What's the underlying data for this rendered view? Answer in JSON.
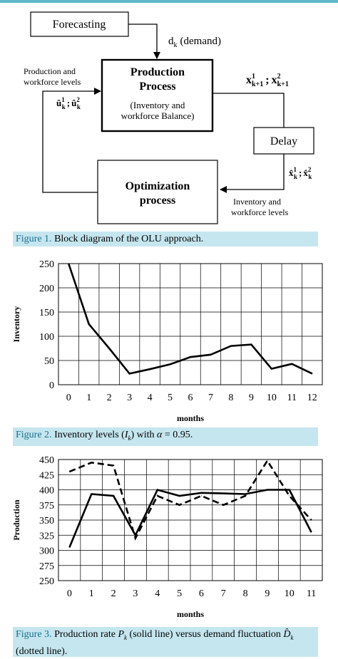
{
  "figure1": {
    "forecasting": "Forecasting",
    "demand": "d",
    "demand_sub": "k",
    "demand_label": "(demand)",
    "production_title_1": "Production",
    "production_title_2": "Process",
    "production_sub_1": "(Inventory and",
    "production_sub_2": "workforce Balance)",
    "delay": "Delay",
    "optimization_1": "Optimization",
    "optimization_2": "process",
    "prod_workforce_1": "Production and",
    "prod_workforce_2": "workforce levels",
    "u_label": "û",
    "x_out_label": "x",
    "x_out_sub": "k+1",
    "x_hat_label": "x̂",
    "x_hat_sub": "k",
    "inv_workforce_1": "Inventory and",
    "inv_workforce_2": "workforce levels",
    "sep": ";",
    "sup1": "1",
    "sup2": "2"
  },
  "captions": {
    "fig1_label": "Figure 1.",
    "fig1_text": " Block diagram of the OLU approach.",
    "fig2_label": "Figure 2.",
    "fig2_text_a": " Inventory levels (",
    "fig2_var": "I",
    "fig2_var_sub": "k",
    "fig2_text_b": ") with ",
    "fig2_alpha": "α",
    "fig2_text_c": " = 0.95.",
    "fig3_label": "Figure 3.",
    "fig3_text_a": " Production rate  ",
    "fig3_var": "P",
    "fig3_var_sub": "k",
    "fig3_text_b": "  (solid line) versus demand fluctuation  ",
    "fig3_var2": "D̂",
    "fig3_var2_sub": "k",
    "fig3_text_c": "(dotted line)."
  },
  "chart_data": [
    {
      "type": "line",
      "xlabel": "months",
      "ylabel": "Inventory",
      "ylim": [
        0,
        250
      ],
      "yticks": [
        0,
        50,
        100,
        150,
        200,
        250
      ],
      "x": [
        0,
        1,
        2,
        3,
        4,
        5,
        6,
        7,
        8,
        9,
        10,
        11,
        12
      ],
      "grid": true,
      "series": [
        {
          "style": "solid",
          "values": [
            250,
            125,
            75,
            23,
            32,
            42,
            57,
            62,
            80,
            83,
            33,
            43,
            23
          ]
        }
      ]
    },
    {
      "type": "line",
      "xlabel": "months",
      "ylabel": "Production",
      "ylim": [
        250,
        450
      ],
      "yticks": [
        250,
        275,
        300,
        325,
        350,
        375,
        400,
        425,
        450
      ],
      "x": [
        0,
        1,
        2,
        3,
        4,
        5,
        6,
        7,
        8,
        9,
        10,
        11
      ],
      "grid": true,
      "series": [
        {
          "style": "solid",
          "values": [
            305,
            393,
            390,
            325,
            400,
            390,
            395,
            394,
            393,
            400,
            400,
            330
          ]
        },
        {
          "style": "dashed",
          "values": [
            430,
            445,
            440,
            320,
            390,
            375,
            390,
            375,
            390,
            448,
            390,
            350
          ]
        }
      ]
    }
  ]
}
